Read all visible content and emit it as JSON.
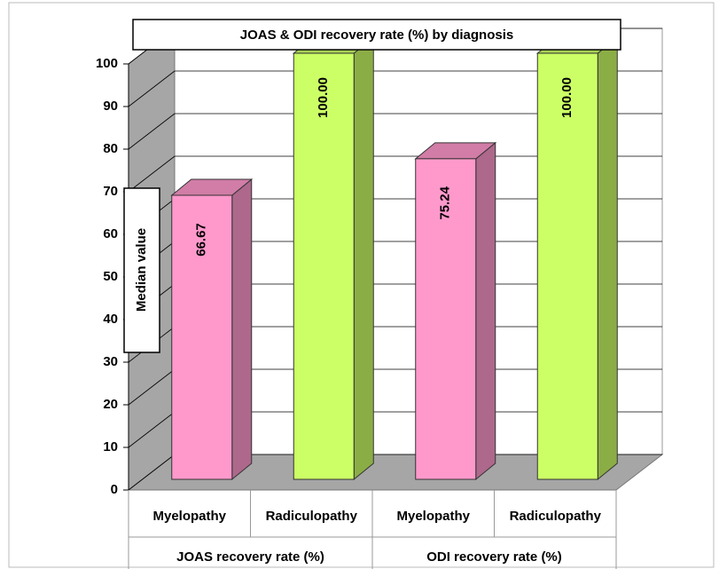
{
  "chart_data": {
    "type": "bar3d",
    "title": "JOAS & ODI recovery rate (%) by diagnosis",
    "y_label": "Median value",
    "categories": [
      "Myelopathy",
      "Radiculopathy",
      "Myelopathy",
      "Radiculopathy"
    ],
    "groups": [
      "JOAS recovery rate (%)",
      "ODI recovery rate (%)"
    ],
    "values": [
      66.67,
      100,
      75.24,
      100
    ],
    "value_labels": [
      "66.67",
      "100.00",
      "75.24",
      "100.00"
    ],
    "colors": [
      "#ff99cc",
      "#ccff66",
      "#ff99cc",
      "#ccff66"
    ],
    "ylim": [
      0,
      100
    ],
    "yticks": [
      0,
      10,
      20,
      30,
      40,
      50,
      60,
      70,
      80,
      90,
      100
    ],
    "grid": true
  }
}
